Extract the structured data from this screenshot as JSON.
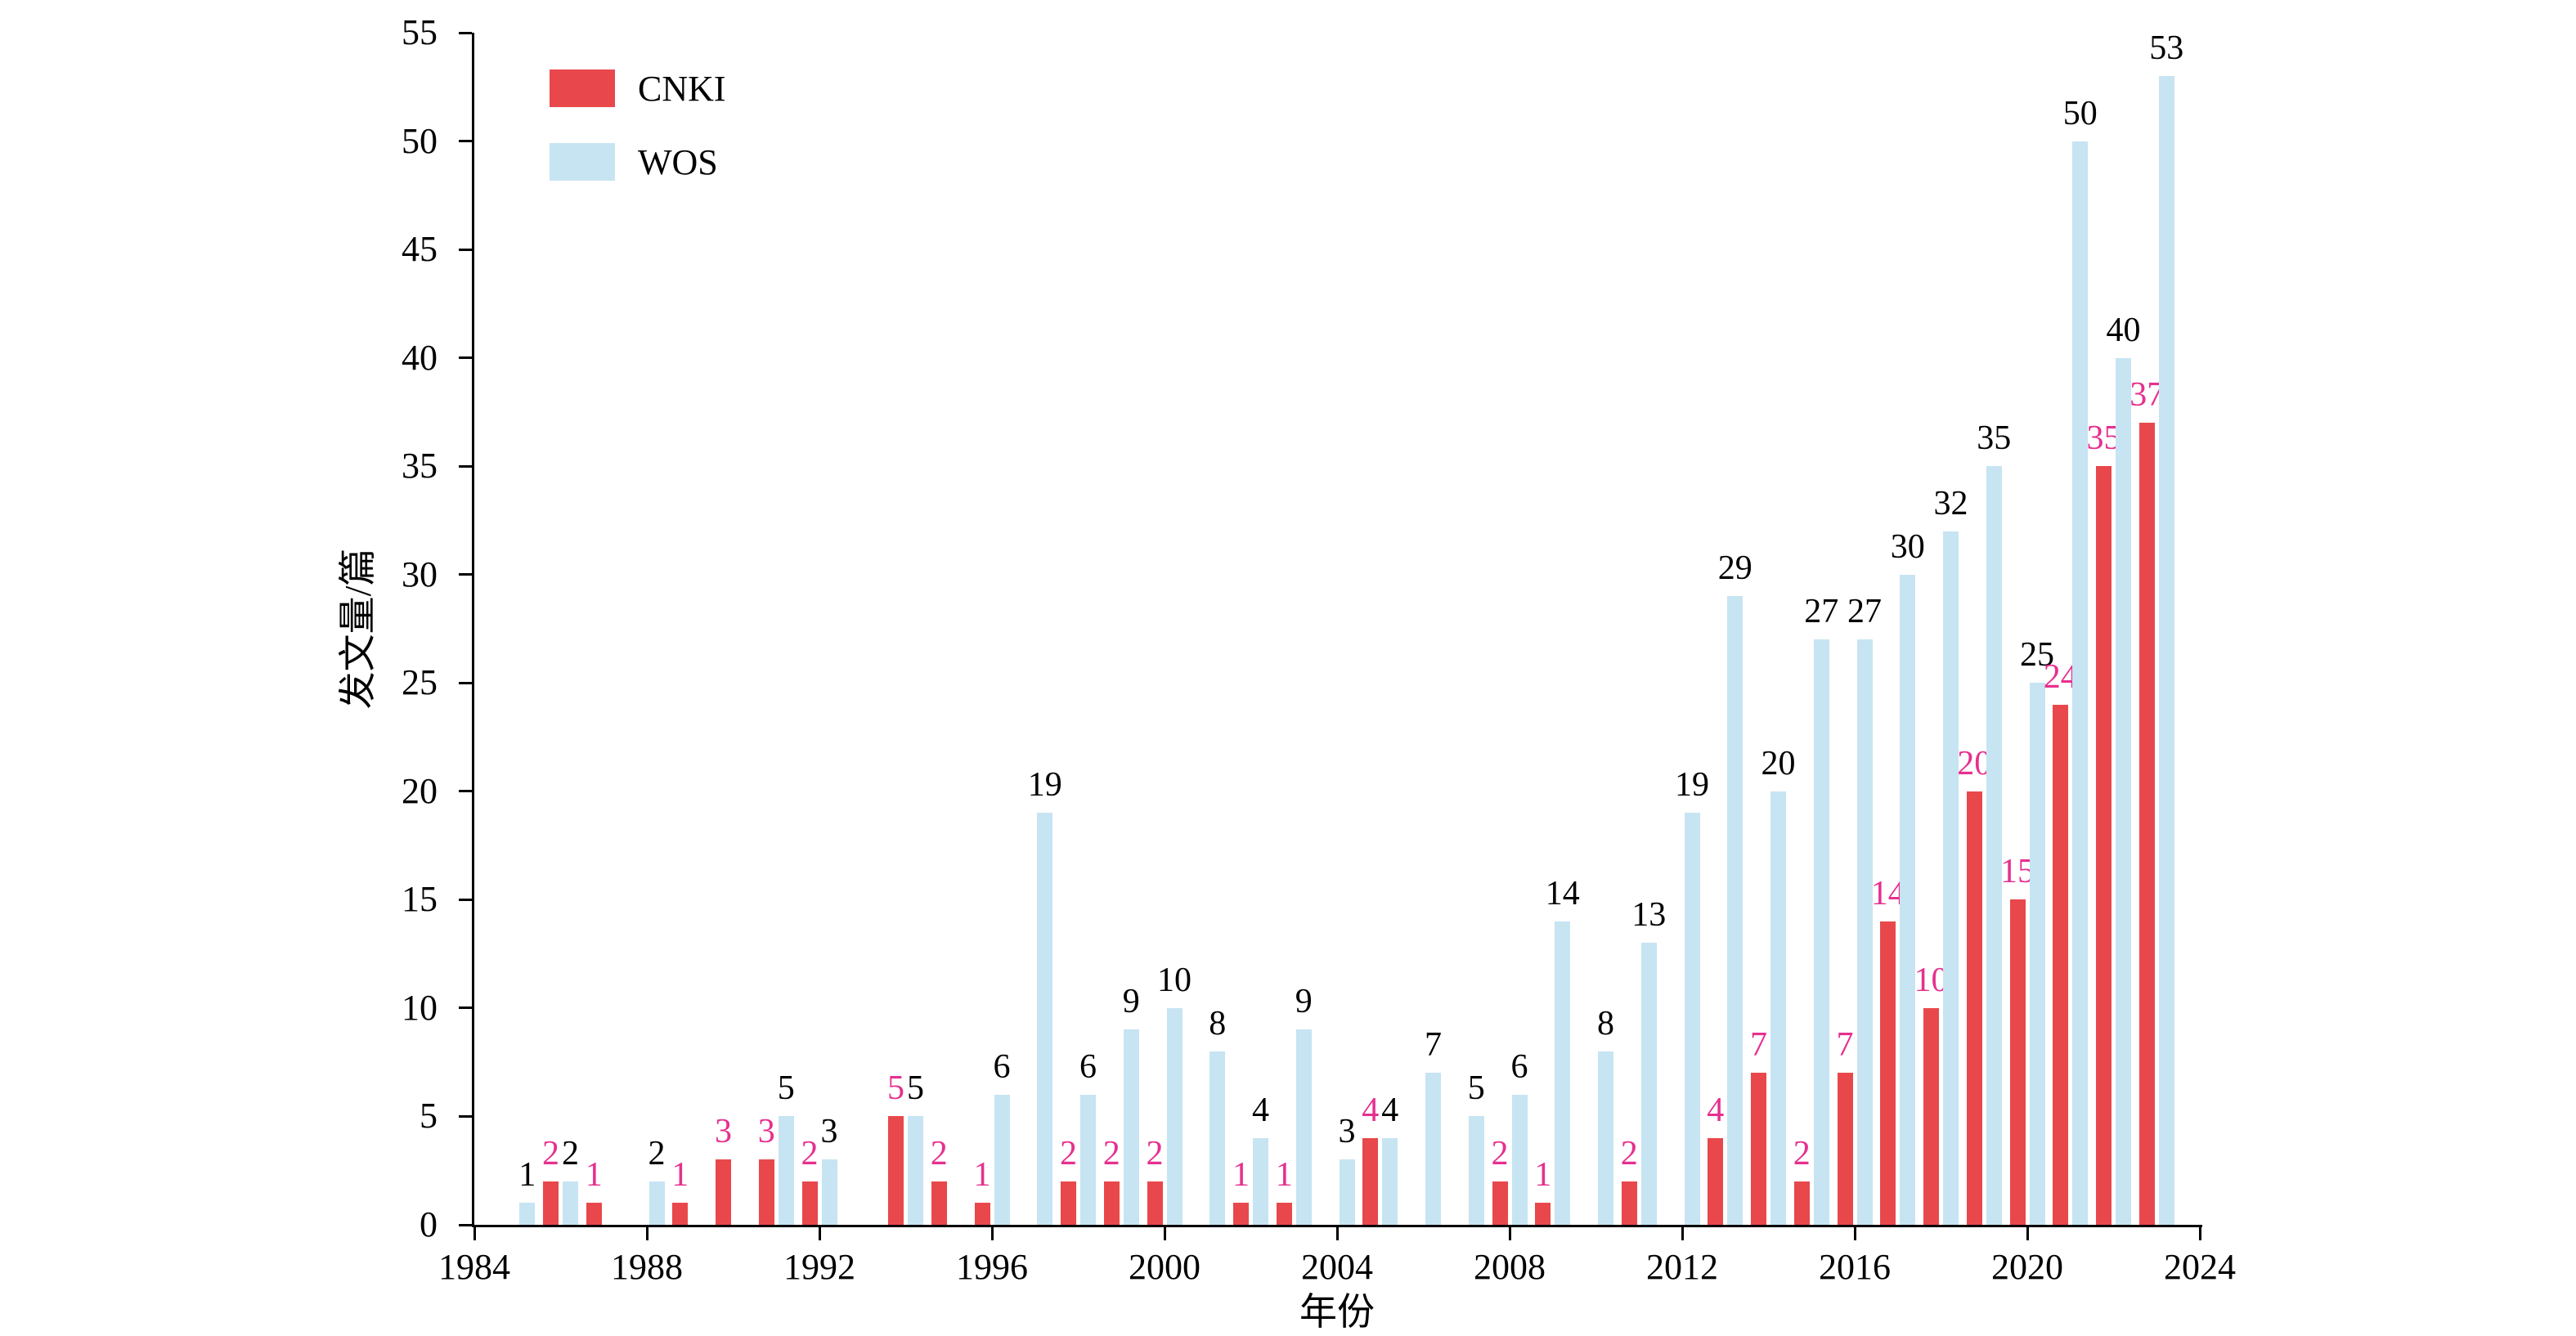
{
  "figure": {
    "background": "#ffffff",
    "axis_color": "#000000"
  },
  "chart_data": {
    "type": "bar",
    "title": "",
    "xlabel": "年份",
    "ylabel": "发文量/篇",
    "ylim": [
      0,
      55
    ],
    "ytick_step": 5,
    "xrange": [
      1984,
      2024
    ],
    "xticks": [
      1984,
      1988,
      1992,
      1996,
      2000,
      2004,
      2008,
      2012,
      2016,
      2020,
      2024
    ],
    "grid": false,
    "legend_position": "top-left",
    "years": [
      1985,
      1986,
      1987,
      1988,
      1989,
      1990,
      1991,
      1992,
      1993,
      1994,
      1995,
      1996,
      1997,
      1998,
      1999,
      2000,
      2001,
      2002,
      2003,
      2004,
      2005,
      2006,
      2007,
      2008,
      2009,
      2010,
      2011,
      2012,
      2013,
      2014,
      2015,
      2016,
      2017,
      2018,
      2019,
      2020,
      2021,
      2022,
      2023
    ],
    "series": [
      {
        "name": "CNKI",
        "bar_color": "#e8484b",
        "label_color": "#e6308f",
        "values": [
          null,
          2,
          1,
          null,
          1,
          3,
          3,
          2,
          null,
          5,
          2,
          1,
          null,
          2,
          2,
          2,
          null,
          1,
          1,
          null,
          4,
          null,
          null,
          2,
          1,
          null,
          2,
          null,
          4,
          7,
          2,
          7,
          14,
          10,
          20,
          15,
          24,
          35,
          37
        ]
      },
      {
        "name": "WOS",
        "bar_color": "#c7e4f2",
        "label_color": "#000000",
        "values": [
          1,
          2,
          null,
          2,
          null,
          null,
          5,
          3,
          null,
          5,
          null,
          6,
          19,
          6,
          9,
          10,
          8,
          4,
          9,
          3,
          4,
          7,
          5,
          6,
          14,
          8,
          13,
          19,
          29,
          20,
          27,
          27,
          30,
          32,
          35,
          25,
          50,
          40,
          53
        ]
      }
    ]
  }
}
